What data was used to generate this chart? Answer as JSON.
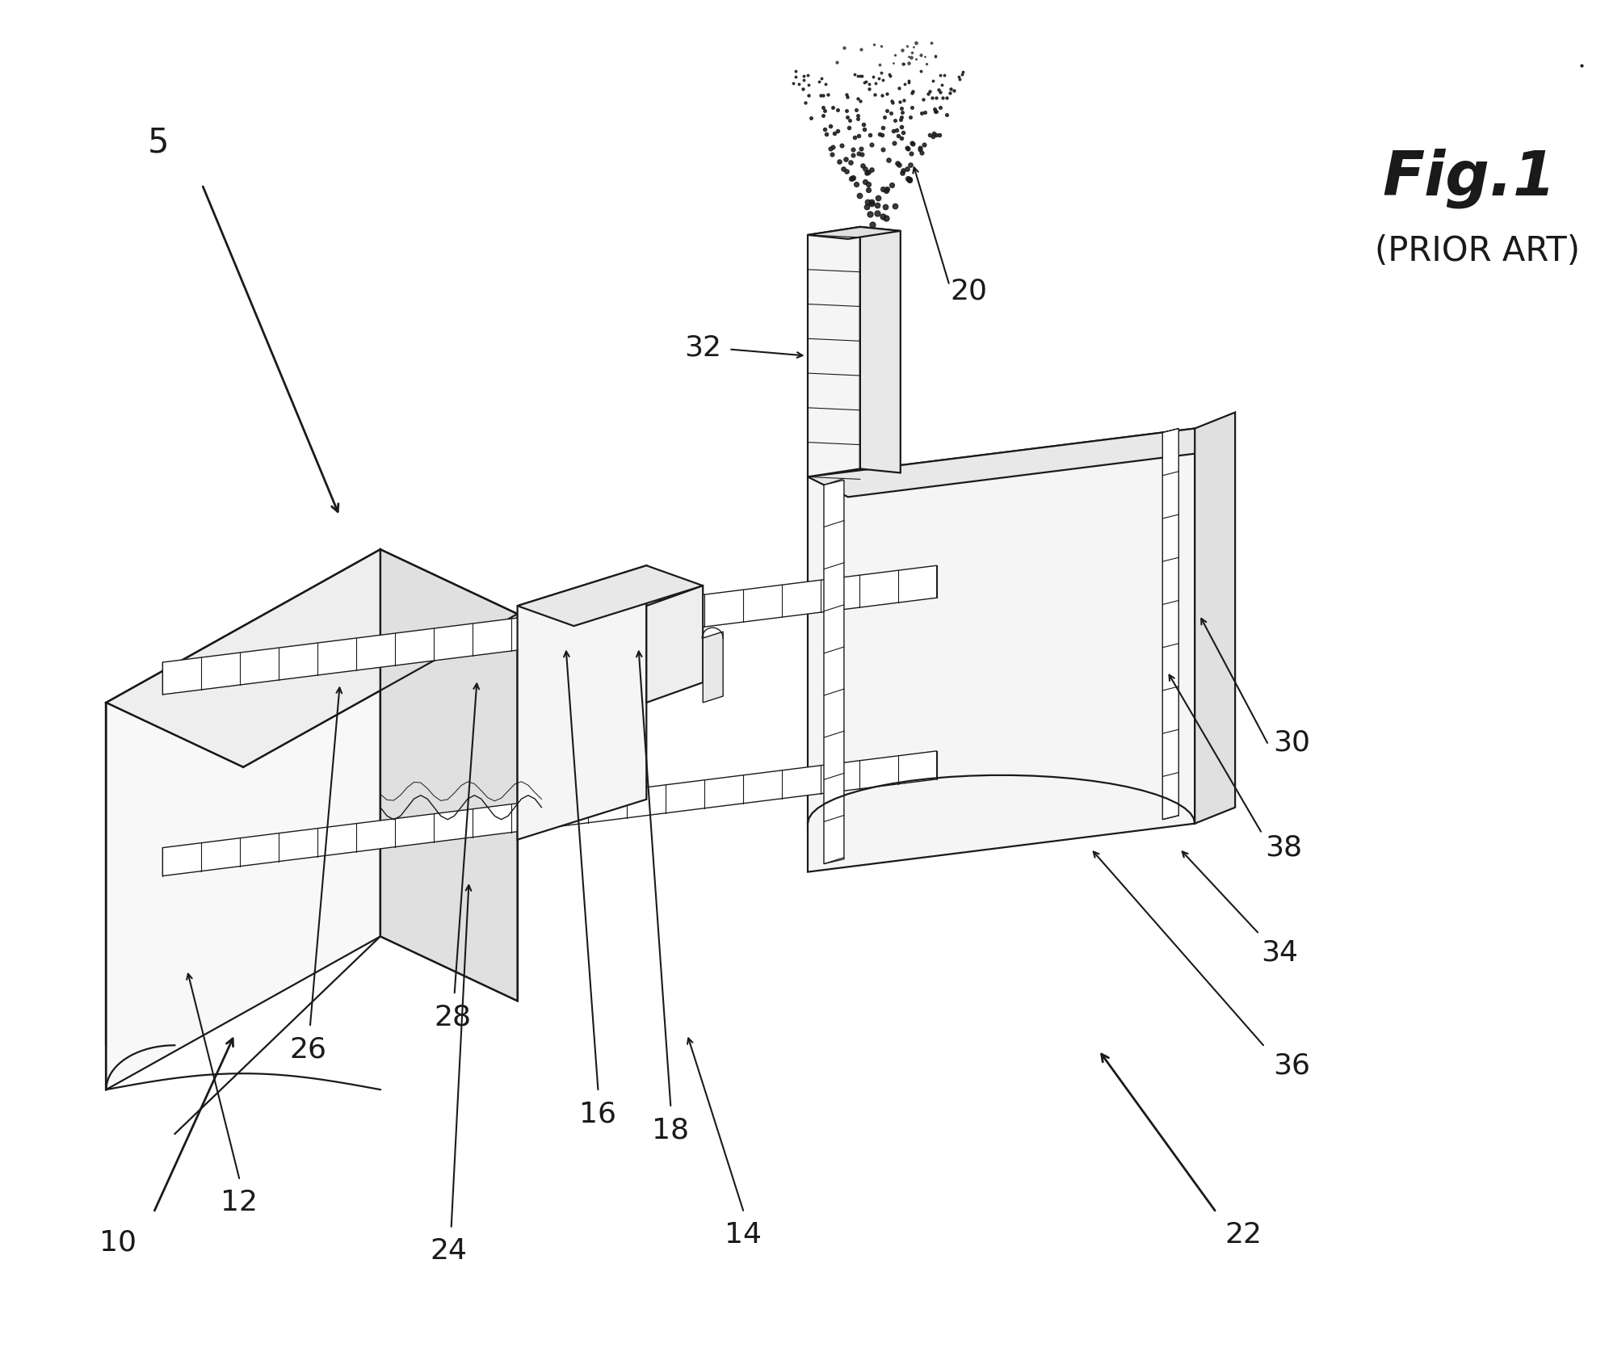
{
  "background_color": "#ffffff",
  "line_color": "#1a1a1a",
  "fig_label": "Fig.1",
  "prior_art": "(PRIOR ART)",
  "lw_main": 1.6,
  "lw_hatch": 0.8,
  "lw_thin": 1.0
}
